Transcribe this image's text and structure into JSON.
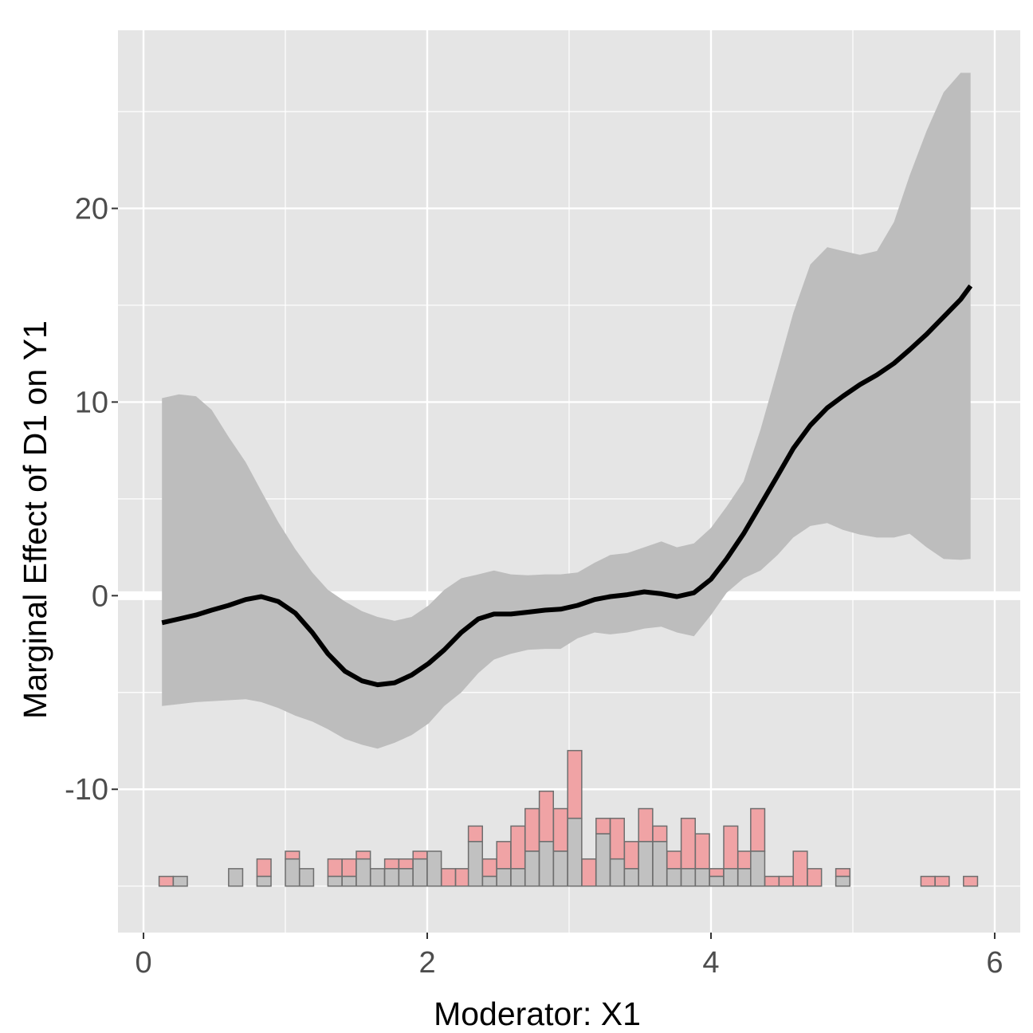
{
  "chart_data": {
    "type": "line",
    "xlabel": "Moderator: X1",
    "ylabel": "Marginal Effect of D1 on Y1",
    "xlim": [
      -0.18,
      6.18
    ],
    "ylim": [
      -17.4,
      29.2
    ],
    "x_ticks": [
      0,
      2,
      4,
      6
    ],
    "y_ticks": [
      -10,
      0,
      10,
      20
    ],
    "x_tick_labels": [
      "0",
      "2",
      "4",
      "6"
    ],
    "y_tick_labels": [
      "-10",
      "0",
      "10",
      "20"
    ],
    "grid": true,
    "reference_line_y": 0,
    "colors": {
      "panel": "#e5e5e5",
      "grid": "#ffffff",
      "line": "#000000",
      "ribbon": "#bdbdbd",
      "hist_treated": "#f0a3a5",
      "hist_control": "#c1c1c1",
      "hist_outline": "#6e6e6e",
      "tick_text": "#4d4d4d"
    },
    "series": [
      {
        "x": [
          0.13,
          0.25,
          0.37,
          0.48,
          0.6,
          0.72,
          0.83,
          0.95,
          1.07,
          1.19,
          1.3,
          1.42,
          1.54,
          1.65,
          1.77,
          1.89,
          2.01,
          2.12,
          2.24,
          2.36,
          2.47,
          2.59,
          2.71,
          2.83,
          2.94,
          3.06,
          3.18,
          3.29,
          3.41,
          3.53,
          3.65,
          3.76,
          3.88,
          4.0,
          4.11,
          4.23,
          4.35,
          4.47,
          4.58,
          4.7,
          4.82,
          4.93,
          5.05,
          5.17,
          5.29,
          5.4,
          5.52,
          5.64,
          5.76,
          5.83
        ],
        "y": [
          -1.4,
          -1.2,
          -1.0,
          -0.75,
          -0.5,
          -0.2,
          -0.05,
          -0.3,
          -0.9,
          -1.9,
          -3.0,
          -3.9,
          -4.4,
          -4.6,
          -4.5,
          -4.1,
          -3.5,
          -2.8,
          -1.9,
          -1.2,
          -0.95,
          -0.95,
          -0.85,
          -0.75,
          -0.7,
          -0.5,
          -0.2,
          -0.05,
          0.05,
          0.2,
          0.1,
          -0.05,
          0.15,
          0.85,
          1.9,
          3.2,
          4.7,
          6.2,
          7.6,
          8.8,
          9.7,
          10.3,
          10.9,
          11.4,
          12.0,
          12.7,
          13.5,
          14.4,
          15.3,
          16.0
        ],
        "lower": [
          -5.7,
          -5.6,
          -5.5,
          -5.45,
          -5.4,
          -5.35,
          -5.5,
          -5.8,
          -6.2,
          -6.5,
          -6.9,
          -7.4,
          -7.7,
          -7.9,
          -7.6,
          -7.2,
          -6.6,
          -5.7,
          -5.0,
          -4.0,
          -3.3,
          -3.0,
          -2.8,
          -2.75,
          -2.75,
          -2.2,
          -1.9,
          -2.0,
          -1.9,
          -1.7,
          -1.6,
          -1.9,
          -2.1,
          -1.0,
          0.15,
          0.9,
          1.3,
          2.1,
          3.0,
          3.6,
          3.75,
          3.4,
          3.15,
          3.0,
          3.0,
          3.2,
          2.5,
          1.9,
          1.85,
          1.9
        ],
        "upper": [
          10.2,
          10.4,
          10.3,
          9.6,
          8.2,
          6.9,
          5.4,
          3.8,
          2.4,
          1.2,
          0.3,
          -0.3,
          -0.8,
          -1.1,
          -1.3,
          -1.1,
          -0.5,
          0.3,
          0.9,
          1.1,
          1.3,
          1.1,
          1.05,
          1.1,
          1.1,
          1.2,
          1.7,
          2.1,
          2.2,
          2.5,
          2.8,
          2.5,
          2.7,
          3.5,
          4.6,
          5.9,
          8.6,
          11.7,
          14.6,
          17.1,
          18.0,
          17.8,
          17.6,
          17.8,
          19.3,
          21.7,
          24.0,
          26.0,
          27.0,
          27.0
        ]
      }
    ],
    "histogram": {
      "baseline": -15,
      "bin_width": 0.099,
      "bin_starts": [
        0.11,
        0.21,
        0.31,
        0.41,
        0.5,
        0.6,
        0.7,
        0.8,
        0.9,
        1.0,
        1.1,
        1.2,
        1.3,
        1.4,
        1.5,
        1.6,
        1.7,
        1.8,
        1.9,
        2.0,
        2.1,
        2.2,
        2.29,
        2.39,
        2.49,
        2.59,
        2.69,
        2.79,
        2.89,
        2.99,
        3.09,
        3.19,
        3.29,
        3.39,
        3.49,
        3.59,
        3.69,
        3.79,
        3.89,
        3.99,
        4.09,
        4.19,
        4.28,
        4.38,
        4.48,
        4.58,
        4.68,
        4.78,
        4.88,
        4.98,
        5.08,
        5.18,
        5.28,
        5.38,
        5.48,
        5.58,
        5.68,
        5.78
      ],
      "control_tops": [
        -15,
        -14.5,
        -15,
        -15,
        -15,
        -14.1,
        -15,
        -14.5,
        -15,
        -13.6,
        -14.1,
        -15,
        -14.5,
        -14.5,
        -13.6,
        -14.1,
        -14.1,
        -14.1,
        -13.6,
        -13.2,
        -15,
        -15,
        -12.7,
        -14.5,
        -14.1,
        -14.1,
        -13.2,
        -12.7,
        -13.2,
        -11.5,
        -15,
        -12.3,
        -13.6,
        -14.1,
        -12.7,
        -12.7,
        -14.1,
        -14.1,
        -14.1,
        -14.5,
        -14.1,
        -14.1,
        -13.2,
        -15,
        -15,
        -15,
        -15,
        -15,
        -14.5,
        -15,
        -15,
        -15,
        -15,
        -15,
        -15,
        -15,
        -15,
        -15
      ],
      "total_tops": [
        -14.5,
        -14.5,
        -15,
        -15,
        -15,
        -14.1,
        -15,
        -13.6,
        -15,
        -13.2,
        -14.1,
        -15,
        -13.6,
        -13.6,
        -13.2,
        -14.1,
        -13.6,
        -13.6,
        -13.2,
        -13.2,
        -14.1,
        -14.1,
        -11.9,
        -13.6,
        -12.7,
        -11.9,
        -11.0,
        -10.1,
        -11.0,
        -8.0,
        -13.6,
        -11.5,
        -11.5,
        -12.7,
        -11.0,
        -11.9,
        -13.2,
        -11.5,
        -12.3,
        -14.1,
        -11.9,
        -13.2,
        -11.0,
        -14.5,
        -14.5,
        -13.2,
        -14.1,
        -15,
        -14.1,
        -15,
        -15,
        -15,
        -15,
        -15,
        -14.5,
        -14.5,
        -15,
        -14.5
      ]
    }
  }
}
